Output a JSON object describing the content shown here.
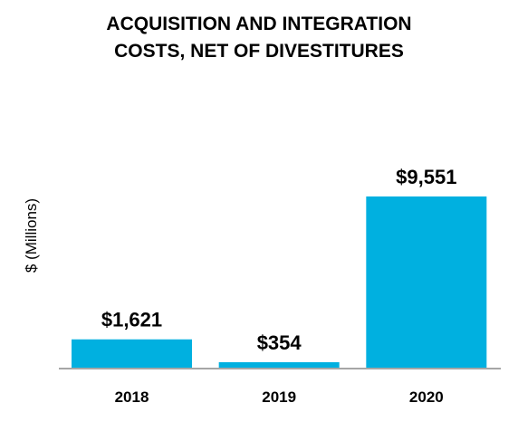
{
  "chart_data": {
    "type": "bar",
    "title_lines": [
      "ACQUISITION AND INTEGRATION",
      "COSTS, NET OF DIVESTITURES"
    ],
    "ylabel": "$ (Millions)",
    "xlabel": "",
    "categories": [
      "2018",
      "2019",
      "2020"
    ],
    "values": [
      1621,
      354,
      9551
    ],
    "value_labels": [
      "$1,621",
      "$354",
      "$9,551"
    ],
    "ylim": [
      0,
      10000
    ],
    "grid": false,
    "legend": "none",
    "bar_color": "#00B0E0",
    "axis_color": "#A6A6A6"
  }
}
